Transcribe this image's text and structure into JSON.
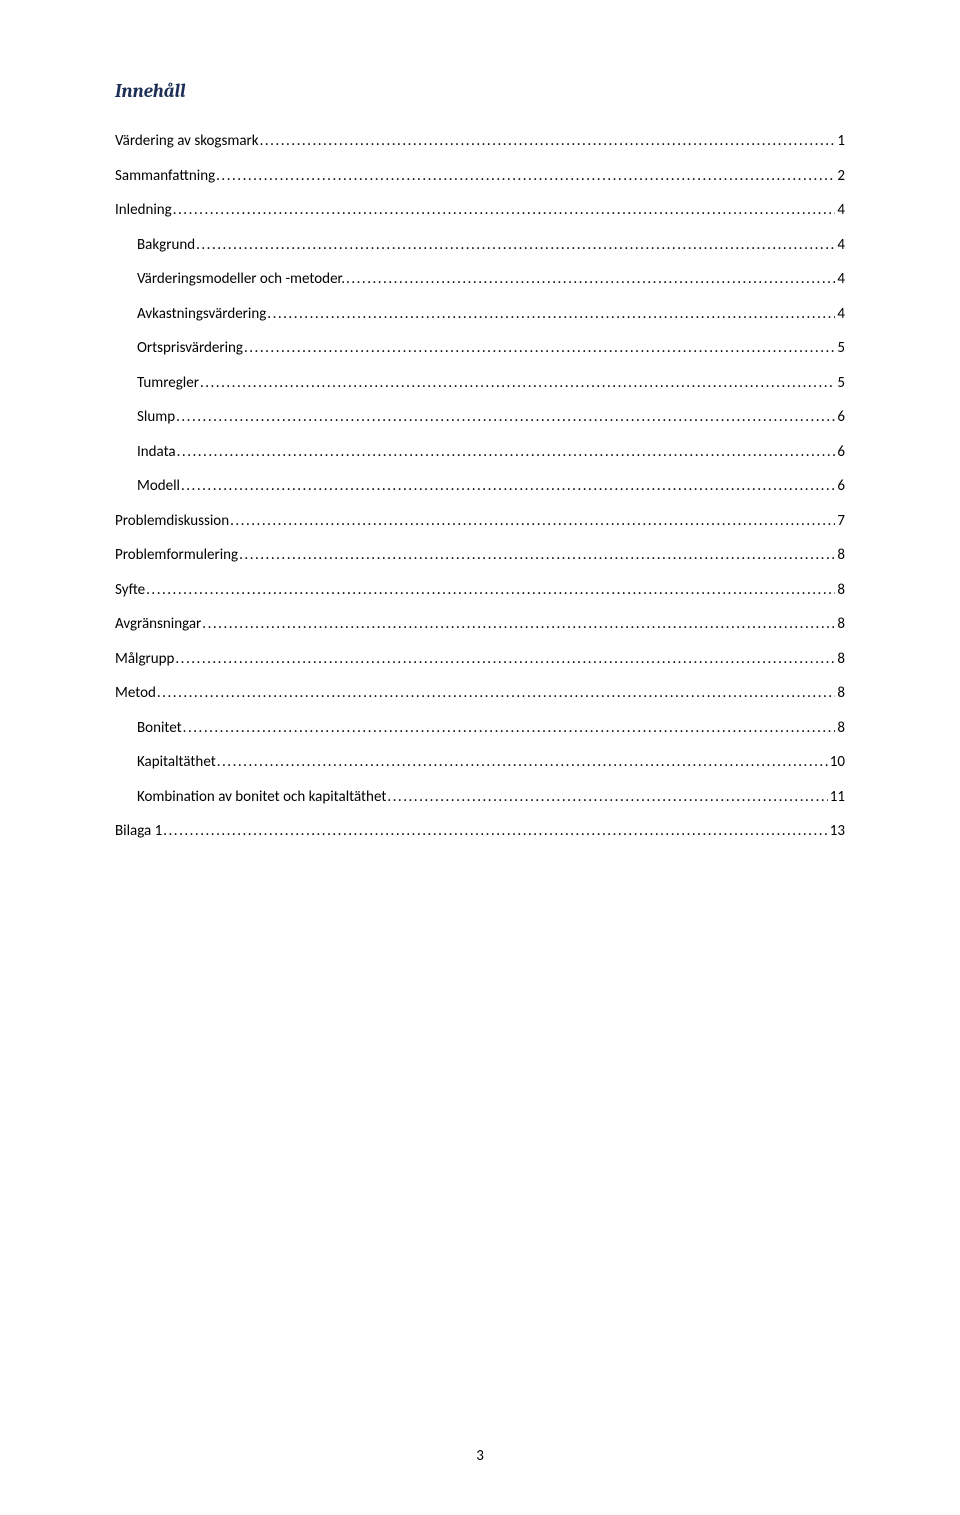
{
  "title": "Innehåll",
  "pageNumber": "3",
  "colors": {
    "title_color": "#1c2f56",
    "text_color": "#000000",
    "background": "#ffffff"
  },
  "typography": {
    "title_font": "Cambria, serif",
    "title_fontsize_pt": 14,
    "title_style": "italic bold",
    "body_font": "Calibri, sans-serif",
    "body_fontsize_pt": 11
  },
  "entries": [
    {
      "label": "Värdering av skogsmark",
      "page": "1",
      "indent": 0
    },
    {
      "label": "Sammanfattning",
      "page": "2",
      "indent": 0
    },
    {
      "label": "Inledning",
      "page": "4",
      "indent": 0
    },
    {
      "label": "Bakgrund",
      "page": "4",
      "indent": 1
    },
    {
      "label": "Värderingsmodeller och -metoder.",
      "page": "4",
      "indent": 1
    },
    {
      "label": "Avkastningsvärdering",
      "page": "4",
      "indent": 1
    },
    {
      "label": "Ortsprisvärdering",
      "page": "5",
      "indent": 1
    },
    {
      "label": "Tumregler",
      "page": "5",
      "indent": 1
    },
    {
      "label": "Slump",
      "page": "6",
      "indent": 1
    },
    {
      "label": "Indata",
      "page": "6",
      "indent": 1
    },
    {
      "label": "Modell",
      "page": "6",
      "indent": 1
    },
    {
      "label": "Problemdiskussion",
      "page": "7",
      "indent": 0
    },
    {
      "label": "Problemformulering",
      "page": "8",
      "indent": 0
    },
    {
      "label": "Syfte",
      "page": "8",
      "indent": 0
    },
    {
      "label": "Avgränsningar",
      "page": "8",
      "indent": 0
    },
    {
      "label": "Målgrupp",
      "page": "8",
      "indent": 0
    },
    {
      "label": "Metod",
      "page": "8",
      "indent": 0
    },
    {
      "label": "Bonitet",
      "page": "8",
      "indent": 1
    },
    {
      "label": "Kapitaltäthet",
      "page": "10",
      "indent": 1
    },
    {
      "label": "Kombination av bonitet och kapitaltäthet",
      "page": "11",
      "indent": 1
    },
    {
      "label": "Bilaga 1",
      "page": "13",
      "indent": 0
    }
  ]
}
